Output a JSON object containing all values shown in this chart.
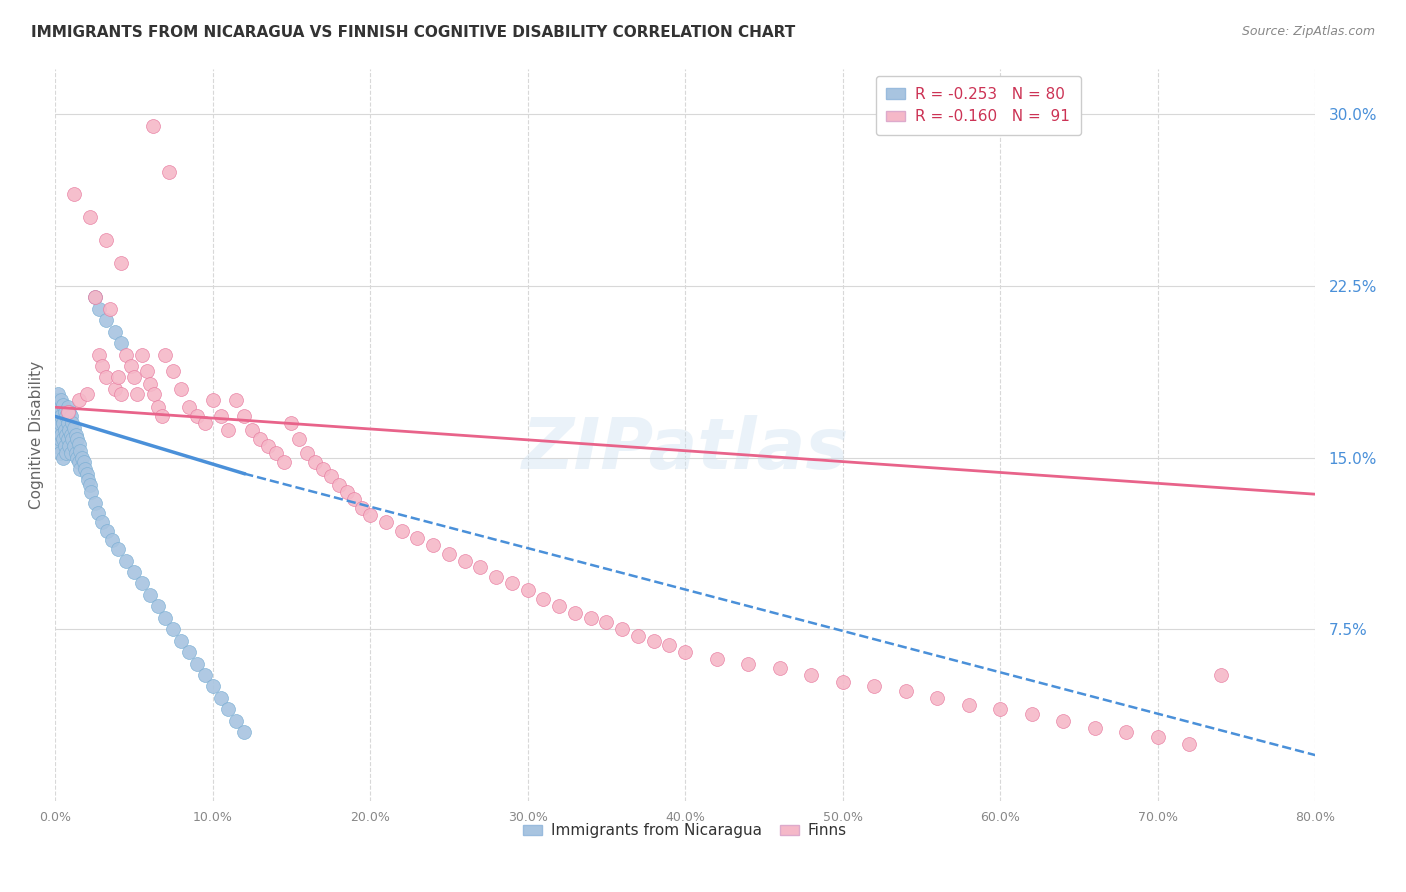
{
  "title": "IMMIGRANTS FROM NICARAGUA VS FINNISH COGNITIVE DISABILITY CORRELATION CHART",
  "source": "Source: ZipAtlas.com",
  "ylabel": "Cognitive Disability",
  "right_yticks": [
    "30.0%",
    "22.5%",
    "15.0%",
    "7.5%"
  ],
  "right_ytick_vals": [
    0.3,
    0.225,
    0.15,
    0.075
  ],
  "legend_line1": "R = -0.253   N = 80",
  "legend_line2": "R = -0.160   N =  91",
  "legend_color1": "#a8c4e0",
  "legend_color2": "#f5b8c8",
  "legend_labels_bottom": [
    "Immigrants from Nicaragua",
    "Finns"
  ],
  "scatter_nicaragua": {
    "color": "#a8c4e0",
    "edge_color": "#7bafd4",
    "x": [
      0.001,
      0.001,
      0.001,
      0.001,
      0.002,
      0.002,
      0.002,
      0.002,
      0.003,
      0.003,
      0.003,
      0.003,
      0.004,
      0.004,
      0.004,
      0.005,
      0.005,
      0.005,
      0.005,
      0.006,
      0.006,
      0.006,
      0.007,
      0.007,
      0.007,
      0.008,
      0.008,
      0.008,
      0.009,
      0.009,
      0.009,
      0.01,
      0.01,
      0.01,
      0.011,
      0.011,
      0.012,
      0.012,
      0.013,
      0.013,
      0.014,
      0.014,
      0.015,
      0.015,
      0.016,
      0.016,
      0.017,
      0.018,
      0.019,
      0.02,
      0.021,
      0.022,
      0.023,
      0.025,
      0.027,
      0.03,
      0.033,
      0.036,
      0.04,
      0.045,
      0.05,
      0.055,
      0.06,
      0.065,
      0.07,
      0.075,
      0.08,
      0.085,
      0.09,
      0.095,
      0.1,
      0.105,
      0.11,
      0.115,
      0.12,
      0.025,
      0.028,
      0.032,
      0.038,
      0.042
    ],
    "y": [
      0.175,
      0.168,
      0.162,
      0.155,
      0.178,
      0.17,
      0.163,
      0.157,
      0.172,
      0.165,
      0.158,
      0.152,
      0.175,
      0.168,
      0.16,
      0.173,
      0.165,
      0.158,
      0.15,
      0.17,
      0.162,
      0.155,
      0.168,
      0.16,
      0.152,
      0.172,
      0.165,
      0.158,
      0.17,
      0.162,
      0.155,
      0.168,
      0.16,
      0.152,
      0.165,
      0.158,
      0.163,
      0.155,
      0.16,
      0.152,
      0.158,
      0.15,
      0.156,
      0.148,
      0.153,
      0.145,
      0.15,
      0.148,
      0.145,
      0.143,
      0.14,
      0.138,
      0.135,
      0.13,
      0.126,
      0.122,
      0.118,
      0.114,
      0.11,
      0.105,
      0.1,
      0.095,
      0.09,
      0.085,
      0.08,
      0.075,
      0.07,
      0.065,
      0.06,
      0.055,
      0.05,
      0.045,
      0.04,
      0.035,
      0.03,
      0.22,
      0.215,
      0.21,
      0.205,
      0.2
    ]
  },
  "scatter_finns": {
    "color": "#f5b8c8",
    "edge_color": "#e87ca0",
    "x": [
      0.008,
      0.015,
      0.02,
      0.025,
      0.028,
      0.03,
      0.032,
      0.035,
      0.038,
      0.04,
      0.042,
      0.045,
      0.048,
      0.05,
      0.052,
      0.055,
      0.058,
      0.06,
      0.063,
      0.065,
      0.068,
      0.07,
      0.075,
      0.08,
      0.085,
      0.09,
      0.095,
      0.1,
      0.105,
      0.11,
      0.115,
      0.12,
      0.125,
      0.13,
      0.135,
      0.14,
      0.145,
      0.15,
      0.155,
      0.16,
      0.165,
      0.17,
      0.175,
      0.18,
      0.185,
      0.19,
      0.195,
      0.2,
      0.21,
      0.22,
      0.23,
      0.24,
      0.25,
      0.26,
      0.27,
      0.28,
      0.29,
      0.3,
      0.31,
      0.32,
      0.33,
      0.34,
      0.35,
      0.36,
      0.37,
      0.38,
      0.39,
      0.4,
      0.42,
      0.44,
      0.46,
      0.48,
      0.5,
      0.52,
      0.54,
      0.56,
      0.58,
      0.6,
      0.62,
      0.64,
      0.66,
      0.68,
      0.7,
      0.72,
      0.74,
      0.012,
      0.022,
      0.032,
      0.042,
      0.062,
      0.072
    ],
    "y": [
      0.17,
      0.175,
      0.178,
      0.22,
      0.195,
      0.19,
      0.185,
      0.215,
      0.18,
      0.185,
      0.178,
      0.195,
      0.19,
      0.185,
      0.178,
      0.195,
      0.188,
      0.182,
      0.178,
      0.172,
      0.168,
      0.195,
      0.188,
      0.18,
      0.172,
      0.168,
      0.165,
      0.175,
      0.168,
      0.162,
      0.175,
      0.168,
      0.162,
      0.158,
      0.155,
      0.152,
      0.148,
      0.165,
      0.158,
      0.152,
      0.148,
      0.145,
      0.142,
      0.138,
      0.135,
      0.132,
      0.128,
      0.125,
      0.122,
      0.118,
      0.115,
      0.112,
      0.108,
      0.105,
      0.102,
      0.098,
      0.095,
      0.092,
      0.088,
      0.085,
      0.082,
      0.08,
      0.078,
      0.075,
      0.072,
      0.07,
      0.068,
      0.065,
      0.062,
      0.06,
      0.058,
      0.055,
      0.052,
      0.05,
      0.048,
      0.045,
      0.042,
      0.04,
      0.038,
      0.035,
      0.032,
      0.03,
      0.028,
      0.025,
      0.055,
      0.265,
      0.255,
      0.245,
      0.235,
      0.295,
      0.275
    ]
  },
  "trendline_nicaragua": {
    "color": "#4a90d9",
    "solid_x_start": 0.0,
    "solid_y_start": 0.168,
    "solid_x_end": 0.12,
    "solid_y_end": 0.143,
    "dash_x_start": 0.12,
    "dash_y_start": 0.143,
    "dash_x_end": 0.8,
    "dash_y_end": 0.02
  },
  "trendline_finns": {
    "color": "#e8638a",
    "x_start": 0.0,
    "y_start": 0.172,
    "x_end": 0.8,
    "y_end": 0.134
  },
  "xlim": [
    0.0,
    0.8
  ],
  "ylim": [
    0.0,
    0.32
  ],
  "background_color": "#ffffff",
  "grid_color": "#d8d8d8",
  "watermark": "ZIPatlas"
}
